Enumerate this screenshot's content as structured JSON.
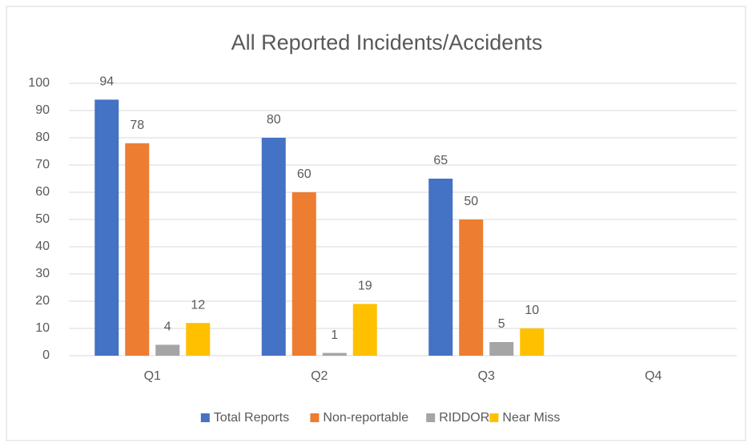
{
  "chart_data": {
    "type": "bar",
    "title": "All Reported Incidents/Accidents",
    "categories": [
      "Q1",
      "Q2",
      "Q3",
      "Q4"
    ],
    "series": [
      {
        "name": "Total Reports",
        "color": "#4472c4",
        "values": [
          94,
          80,
          65,
          null
        ]
      },
      {
        "name": "Non-reportable",
        "color": "#ed7d31",
        "values": [
          78,
          60,
          50,
          null
        ]
      },
      {
        "name": "RIDDOR",
        "color": "#a5a5a5",
        "values": [
          4,
          1,
          5,
          null
        ]
      },
      {
        "name": "Near Miss",
        "color": "#ffc000",
        "values": [
          12,
          19,
          10,
          null
        ]
      }
    ],
    "ylim": [
      0,
      100
    ],
    "yticks": [
      0,
      10,
      20,
      30,
      40,
      50,
      60,
      70,
      80,
      90,
      100
    ],
    "grid": true,
    "legend": "bottom"
  }
}
